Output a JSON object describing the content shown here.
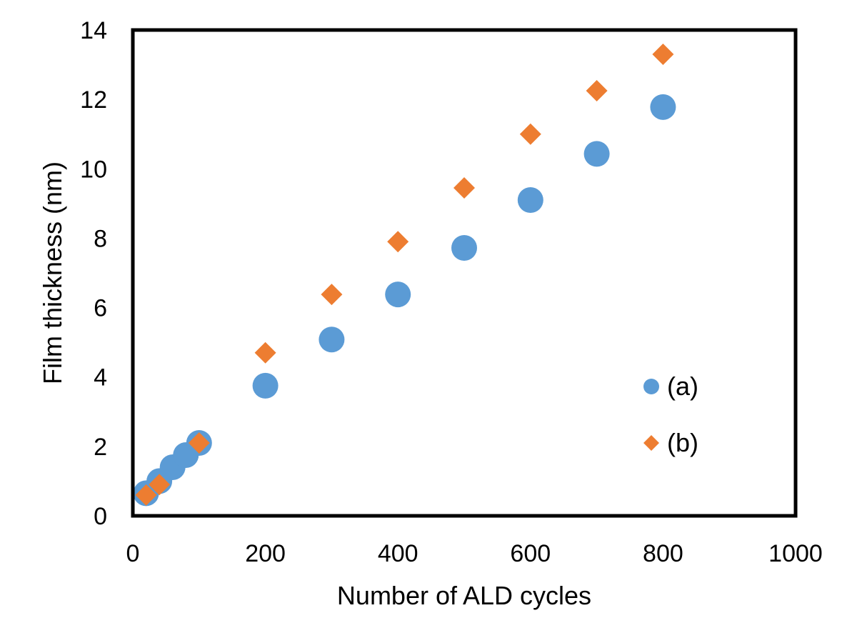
{
  "chart_data": {
    "type": "scatter",
    "title": "",
    "xlabel": "Number of ALD cycles",
    "ylabel": "Film thickness (nm)",
    "xlim": [
      0,
      1000
    ],
    "ylim": [
      0,
      14
    ],
    "xticks": [
      0,
      200,
      400,
      600,
      800,
      1000
    ],
    "yticks": [
      0,
      2,
      4,
      6,
      8,
      10,
      12,
      14
    ],
    "xtick_labels": [
      "0",
      "200",
      "400",
      "600",
      "800",
      "1000"
    ],
    "ytick_labels": [
      "0",
      "2",
      "4",
      "6",
      "8",
      "10",
      "12",
      "14"
    ],
    "grid": false,
    "legend_position": "right",
    "series": [
      {
        "name": "(a)",
        "marker": "circle",
        "color": "#5B9BD5",
        "x": [
          20,
          40,
          60,
          80,
          100,
          200,
          300,
          400,
          500,
          600,
          700,
          800
        ],
        "y": [
          0.65,
          1.0,
          1.4,
          1.75,
          2.1,
          3.75,
          5.08,
          6.38,
          7.72,
          9.1,
          10.43,
          11.78
        ]
      },
      {
        "name": "(b)",
        "marker": "diamond",
        "color": "#ED7D31",
        "x": [
          20,
          40,
          100,
          200,
          300,
          400,
          500,
          600,
          700,
          800
        ],
        "y": [
          0.6,
          0.9,
          2.1,
          4.7,
          6.38,
          7.9,
          9.45,
          11.0,
          12.25,
          13.3
        ]
      }
    ]
  }
}
